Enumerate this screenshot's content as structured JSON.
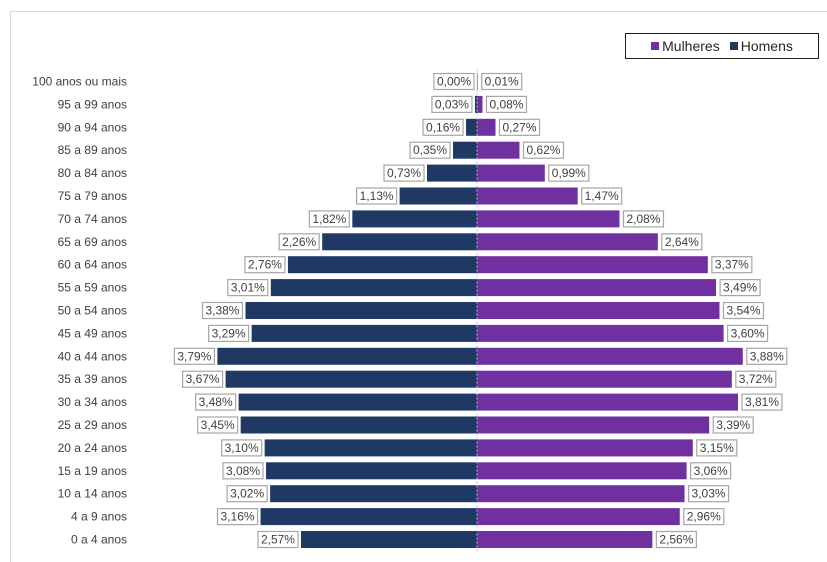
{
  "colors": {
    "female": "#7030a0",
    "male": "#203864",
    "label_border": "#a6a6a6",
    "label_text": "#404040",
    "axis_text": "#404040"
  },
  "legend": {
    "female_label": "Mulheres",
    "male_label": "Homens",
    "placement": "top-right"
  },
  "chart_data": {
    "type": "bar",
    "orientation": "horizontal-pyramid",
    "title": "",
    "xlabel": "",
    "ylabel": "",
    "grid": false,
    "categories": [
      "100 anos ou mais",
      "95 a 99 anos",
      "90 a 94 anos",
      "85 a 89 anos",
      "80 a 84 anos",
      "75 a 79 anos",
      "70 a 74 anos",
      "65 a 69 anos",
      "60 a 64 anos",
      "55 a 59 anos",
      "50 a 54 anos",
      "45 a 49 anos",
      "40 a 44 anos",
      "35 a 39 anos",
      "30 a 34 anos",
      "25 a 29 anos",
      "20 a 24 anos",
      "15 a 19 anos",
      "10 a 14 anos",
      "4 a 9 anos",
      "0 a 4 anos"
    ],
    "series": [
      {
        "name": "Homens",
        "values": [
          0.0,
          0.03,
          0.16,
          0.35,
          0.73,
          1.13,
          1.82,
          2.26,
          2.76,
          3.01,
          3.38,
          3.29,
          3.79,
          3.67,
          3.48,
          3.45,
          3.1,
          3.08,
          3.02,
          3.16,
          2.57
        ],
        "labels": [
          "0,00%",
          "0,03%",
          "0,16%",
          "0,35%",
          "0,73%",
          "1,13%",
          "1,82%",
          "2,26%",
          "2,76%",
          "3,01%",
          "3,38%",
          "3,29%",
          "3,79%",
          "3,67%",
          "3,48%",
          "3,45%",
          "3,10%",
          "3,08%",
          "3,02%",
          "3,16%",
          "2,57%"
        ]
      },
      {
        "name": "Mulheres",
        "values": [
          0.01,
          0.08,
          0.27,
          0.62,
          0.99,
          1.47,
          2.08,
          2.64,
          3.37,
          3.49,
          3.54,
          3.6,
          3.88,
          3.72,
          3.81,
          3.39,
          3.15,
          3.06,
          3.03,
          2.96,
          2.56
        ],
        "labels": [
          "0,01%",
          "0,08%",
          "0,27%",
          "0,62%",
          "0,99%",
          "1,47%",
          "2,08%",
          "2,64%",
          "3,37%",
          "3,49%",
          "3,54%",
          "3,60%",
          "3,88%",
          "3,72%",
          "3,81%",
          "3,39%",
          "3,15%",
          "3,06%",
          "3,03%",
          "2,96%",
          "2,56%"
        ]
      }
    ]
  }
}
